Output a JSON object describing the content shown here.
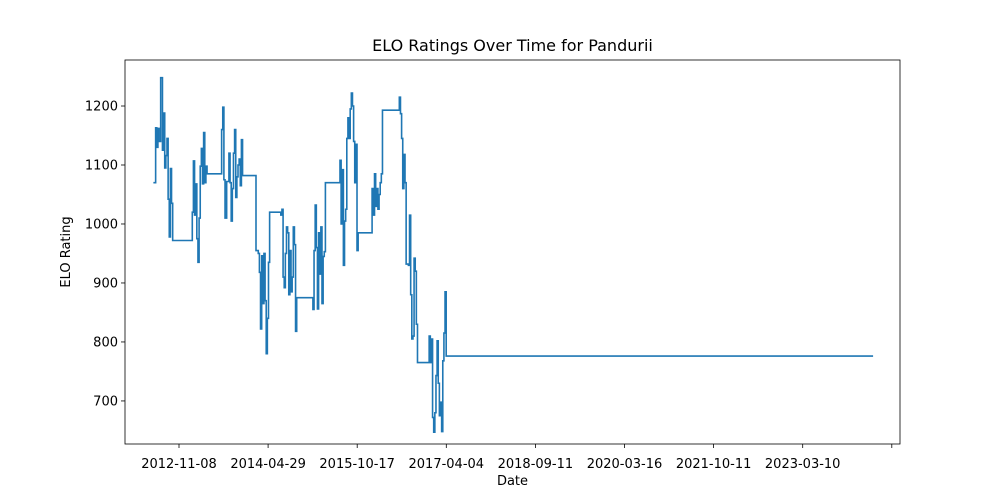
{
  "chart_data": {
    "type": "line",
    "title": "ELO Ratings Over Time for Pandurii",
    "xlabel": "Date",
    "ylabel": "ELO Rating",
    "x_tick_labels": [
      "2012-11-08",
      "2014-04-29",
      "2015-10-17",
      "2017-04-04",
      "2018-09-11",
      "2020-03-16",
      "2021-10-11",
      "2023-03-10",
      ""
    ],
    "x_range": [
      "2011-12-14",
      "2025-01-14"
    ],
    "y_ticks": [
      700,
      800,
      900,
      1000,
      1100,
      1200
    ],
    "ylim": [
      627,
      1278
    ],
    "grid": false,
    "legend": "none",
    "line_color": "#1f77b4",
    "series": [
      {
        "drawstyle": "steps-post",
        "points": [
          [
            "2012-06-06",
            1070
          ],
          [
            "2012-06-20",
            1163
          ],
          [
            "2012-06-27",
            1130
          ],
          [
            "2012-07-04",
            1162
          ],
          [
            "2012-07-11",
            1140
          ],
          [
            "2012-07-21",
            1248
          ],
          [
            "2012-08-01",
            1125
          ],
          [
            "2012-08-08",
            1188
          ],
          [
            "2012-08-15",
            1095
          ],
          [
            "2012-08-22",
            1116
          ],
          [
            "2012-08-29",
            1145
          ],
          [
            "2012-09-05",
            1042
          ],
          [
            "2012-09-12",
            978
          ],
          [
            "2012-09-19",
            1094
          ],
          [
            "2012-09-26",
            1035
          ],
          [
            "2012-10-03",
            972
          ],
          [
            "2013-02-01",
            1020
          ],
          [
            "2013-02-08",
            1107
          ],
          [
            "2013-02-15",
            1015
          ],
          [
            "2013-02-22",
            1068
          ],
          [
            "2013-03-01",
            975
          ],
          [
            "2013-03-08",
            935
          ],
          [
            "2013-03-15",
            1010
          ],
          [
            "2013-03-22",
            1098
          ],
          [
            "2013-03-29",
            1128
          ],
          [
            "2013-04-05",
            1068
          ],
          [
            "2013-04-12",
            1155
          ],
          [
            "2013-04-19",
            1070
          ],
          [
            "2013-04-26",
            1098
          ],
          [
            "2013-05-03",
            1085
          ],
          [
            "2013-08-01",
            1160
          ],
          [
            "2013-08-08",
            1198
          ],
          [
            "2013-08-15",
            1075
          ],
          [
            "2013-08-22",
            1010
          ],
          [
            "2013-09-01",
            1072
          ],
          [
            "2013-09-15",
            1120
          ],
          [
            "2013-09-22",
            1070
          ],
          [
            "2013-09-29",
            1005
          ],
          [
            "2013-10-06",
            1060
          ],
          [
            "2013-10-13",
            1120
          ],
          [
            "2013-10-20",
            1160
          ],
          [
            "2013-10-27",
            1045
          ],
          [
            "2013-11-03",
            1080
          ],
          [
            "2013-11-10",
            1100
          ],
          [
            "2013-11-17",
            1110
          ],
          [
            "2013-11-24",
            1065
          ],
          [
            "2013-12-01",
            1143
          ],
          [
            "2013-12-08",
            1082
          ],
          [
            "2014-03-01",
            955
          ],
          [
            "2014-03-15",
            950
          ],
          [
            "2014-03-22",
            918
          ],
          [
            "2014-03-29",
            822
          ],
          [
            "2014-04-05",
            946
          ],
          [
            "2014-04-12",
            865
          ],
          [
            "2014-04-19",
            950
          ],
          [
            "2014-04-26",
            870
          ],
          [
            "2014-05-03",
            780
          ],
          [
            "2014-05-10",
            840
          ],
          [
            "2014-05-17",
            935
          ],
          [
            "2014-05-24",
            1020
          ],
          [
            "2014-08-01",
            1015
          ],
          [
            "2014-08-08",
            1025
          ],
          [
            "2014-08-15",
            910
          ],
          [
            "2014-08-22",
            892
          ],
          [
            "2014-08-29",
            950
          ],
          [
            "2014-09-05",
            995
          ],
          [
            "2014-09-12",
            985
          ],
          [
            "2014-09-19",
            880
          ],
          [
            "2014-09-26",
            955
          ],
          [
            "2014-10-03",
            885
          ],
          [
            "2014-10-10",
            910
          ],
          [
            "2014-10-17",
            995
          ],
          [
            "2014-10-24",
            965
          ],
          [
            "2014-10-31",
            818
          ],
          [
            "2014-11-07",
            875
          ],
          [
            "2015-02-15",
            855
          ],
          [
            "2015-02-22",
            955
          ],
          [
            "2015-03-01",
            1032
          ],
          [
            "2015-03-08",
            960
          ],
          [
            "2015-03-15",
            856
          ],
          [
            "2015-03-22",
            985
          ],
          [
            "2015-03-29",
            915
          ],
          [
            "2015-04-05",
            995
          ],
          [
            "2015-04-12",
            865
          ],
          [
            "2015-04-19",
            945
          ],
          [
            "2015-04-26",
            953
          ],
          [
            "2015-05-03",
            1070
          ],
          [
            "2015-08-01",
            1108
          ],
          [
            "2015-08-08",
            1000
          ],
          [
            "2015-08-15",
            1092
          ],
          [
            "2015-08-22",
            930
          ],
          [
            "2015-08-29",
            1005
          ],
          [
            "2015-09-05",
            1025
          ],
          [
            "2015-09-12",
            1145
          ],
          [
            "2015-09-19",
            1180
          ],
          [
            "2015-09-26",
            1145
          ],
          [
            "2015-10-03",
            1195
          ],
          [
            "2015-10-10",
            1222
          ],
          [
            "2015-10-17",
            1200
          ],
          [
            "2015-10-24",
            1140
          ],
          [
            "2015-10-31",
            1070
          ],
          [
            "2015-11-07",
            1135
          ],
          [
            "2015-11-14",
            955
          ],
          [
            "2015-11-21",
            985
          ],
          [
            "2016-02-15",
            1060
          ],
          [
            "2016-02-22",
            1015
          ],
          [
            "2016-03-01",
            1085
          ],
          [
            "2016-03-08",
            1030
          ],
          [
            "2016-03-15",
            1060
          ],
          [
            "2016-03-22",
            1025
          ],
          [
            "2016-03-29",
            1050
          ],
          [
            "2016-04-05",
            1070
          ],
          [
            "2016-04-12",
            1085
          ],
          [
            "2016-04-19",
            1193
          ],
          [
            "2016-08-01",
            1215
          ],
          [
            "2016-08-08",
            1187
          ],
          [
            "2016-08-15",
            1145
          ],
          [
            "2016-08-22",
            1060
          ],
          [
            "2016-08-29",
            1118
          ],
          [
            "2016-09-05",
            1070
          ],
          [
            "2016-09-12",
            932
          ],
          [
            "2016-09-26",
            930
          ],
          [
            "2016-10-03",
            1015
          ],
          [
            "2016-10-10",
            880
          ],
          [
            "2016-10-17",
            805
          ],
          [
            "2016-10-24",
            810
          ],
          [
            "2016-10-31",
            942
          ],
          [
            "2016-11-07",
            920
          ],
          [
            "2016-11-14",
            830
          ],
          [
            "2016-11-21",
            765
          ],
          [
            "2017-02-01",
            810
          ],
          [
            "2017-02-08",
            765
          ],
          [
            "2017-02-15",
            805
          ],
          [
            "2017-02-22",
            672
          ],
          [
            "2017-03-01",
            647
          ],
          [
            "2017-03-08",
            680
          ],
          [
            "2017-03-15",
            743
          ],
          [
            "2017-03-22",
            802
          ],
          [
            "2017-03-29",
            730
          ],
          [
            "2017-04-05",
            675
          ],
          [
            "2017-04-12",
            698
          ],
          [
            "2017-04-19",
            648
          ],
          [
            "2017-04-26",
            768
          ],
          [
            "2017-05-03",
            815
          ],
          [
            "2017-05-10",
            885
          ],
          [
            "2017-05-17",
            776
          ],
          [
            "2024-08-01",
            776
          ]
        ]
      }
    ]
  }
}
